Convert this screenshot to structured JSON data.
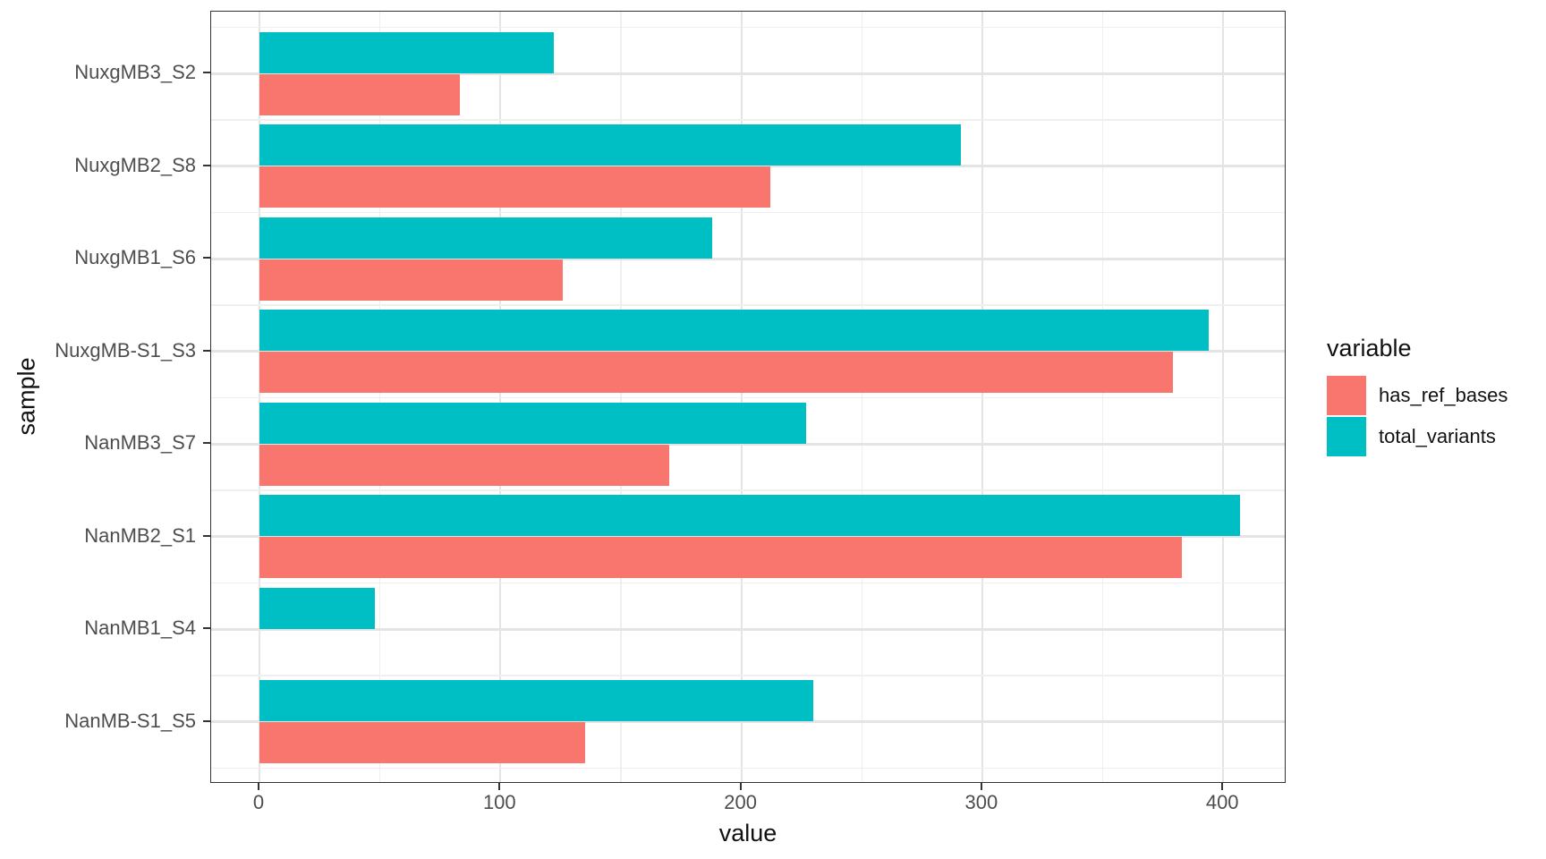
{
  "chart_data": {
    "type": "bar",
    "orientation": "horizontal",
    "title": "",
    "xlabel": "value",
    "ylabel": "sample",
    "legend_title": "variable",
    "legend_position": "right",
    "categories": [
      "NuxgMB3_S2",
      "NuxgMB2_S8",
      "NuxgMB1_S6",
      "NuxgMB-S1_S3",
      "NanMB3_S7",
      "NanMB2_S1",
      "NanMB1_S4",
      "NanMB-S1_S5"
    ],
    "series": [
      {
        "name": "has_ref_bases",
        "color": "#F8766D",
        "values": [
          83,
          212,
          126,
          379,
          170,
          383,
          0,
          135
        ]
      },
      {
        "name": "total_variants",
        "color": "#00BFC4",
        "values": [
          122,
          291,
          188,
          394,
          227,
          407,
          48,
          230
        ]
      }
    ],
    "x_ticks": [
      0,
      100,
      200,
      300,
      400
    ],
    "x_minor_ticks": [
      50,
      150,
      250,
      350
    ],
    "xlim": [
      -21,
      426
    ],
    "grid": "major and minor light gray gridlines on white panel",
    "bar_grouping": "dodged; total_variants bar drawn above has_ref_bases bar in each sample group"
  }
}
